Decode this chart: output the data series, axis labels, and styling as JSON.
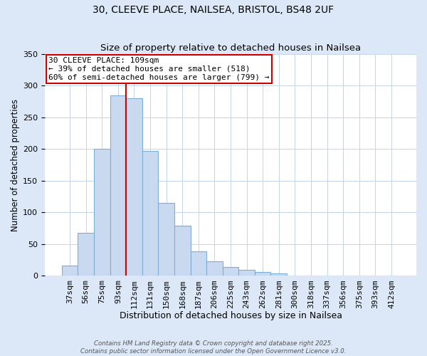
{
  "title": "30, CLEEVE PLACE, NAILSEA, BRISTOL, BS48 2UF",
  "subtitle": "Size of property relative to detached houses in Nailsea",
  "xlabel": "Distribution of detached houses by size in Nailsea",
  "ylabel": "Number of detached properties",
  "bar_labels": [
    "37sqm",
    "56sqm",
    "75sqm",
    "93sqm",
    "112sqm",
    "131sqm",
    "150sqm",
    "168sqm",
    "187sqm",
    "206sqm",
    "225sqm",
    "243sqm",
    "262sqm",
    "281sqm",
    "300sqm",
    "318sqm",
    "337sqm",
    "356sqm",
    "375sqm",
    "393sqm",
    "412sqm"
  ],
  "bar_values": [
    16,
    68,
    200,
    284,
    280,
    197,
    115,
    79,
    39,
    23,
    14,
    9,
    6,
    4,
    1,
    1,
    0,
    0,
    1,
    0,
    1
  ],
  "bar_color": "#c9d9f0",
  "bar_edge_color": "#7bafd4",
  "vline_x": 3.5,
  "vline_color": "#cc0000",
  "annotation_title": "30 CLEEVE PLACE: 109sqm",
  "annotation_line1": "← 39% of detached houses are smaller (518)",
  "annotation_line2": "60% of semi-detached houses are larger (799) →",
  "annotation_box_color": "#cc0000",
  "ylim": [
    0,
    350
  ],
  "yticks": [
    0,
    50,
    100,
    150,
    200,
    250,
    300,
    350
  ],
  "footer1": "Contains HM Land Registry data © Crown copyright and database right 2025.",
  "footer2": "Contains public sector information licensed under the Open Government Licence v3.0.",
  "bg_color": "#dce8f8",
  "plot_bg_color": "#ffffff",
  "grid_color": "#c5d5ea",
  "title_fontsize": 10,
  "subtitle_fontsize": 9.5,
  "xlabel_fontsize": 9,
  "ylabel_fontsize": 8.5,
  "tick_fontsize": 8,
  "annot_fontsize": 8
}
